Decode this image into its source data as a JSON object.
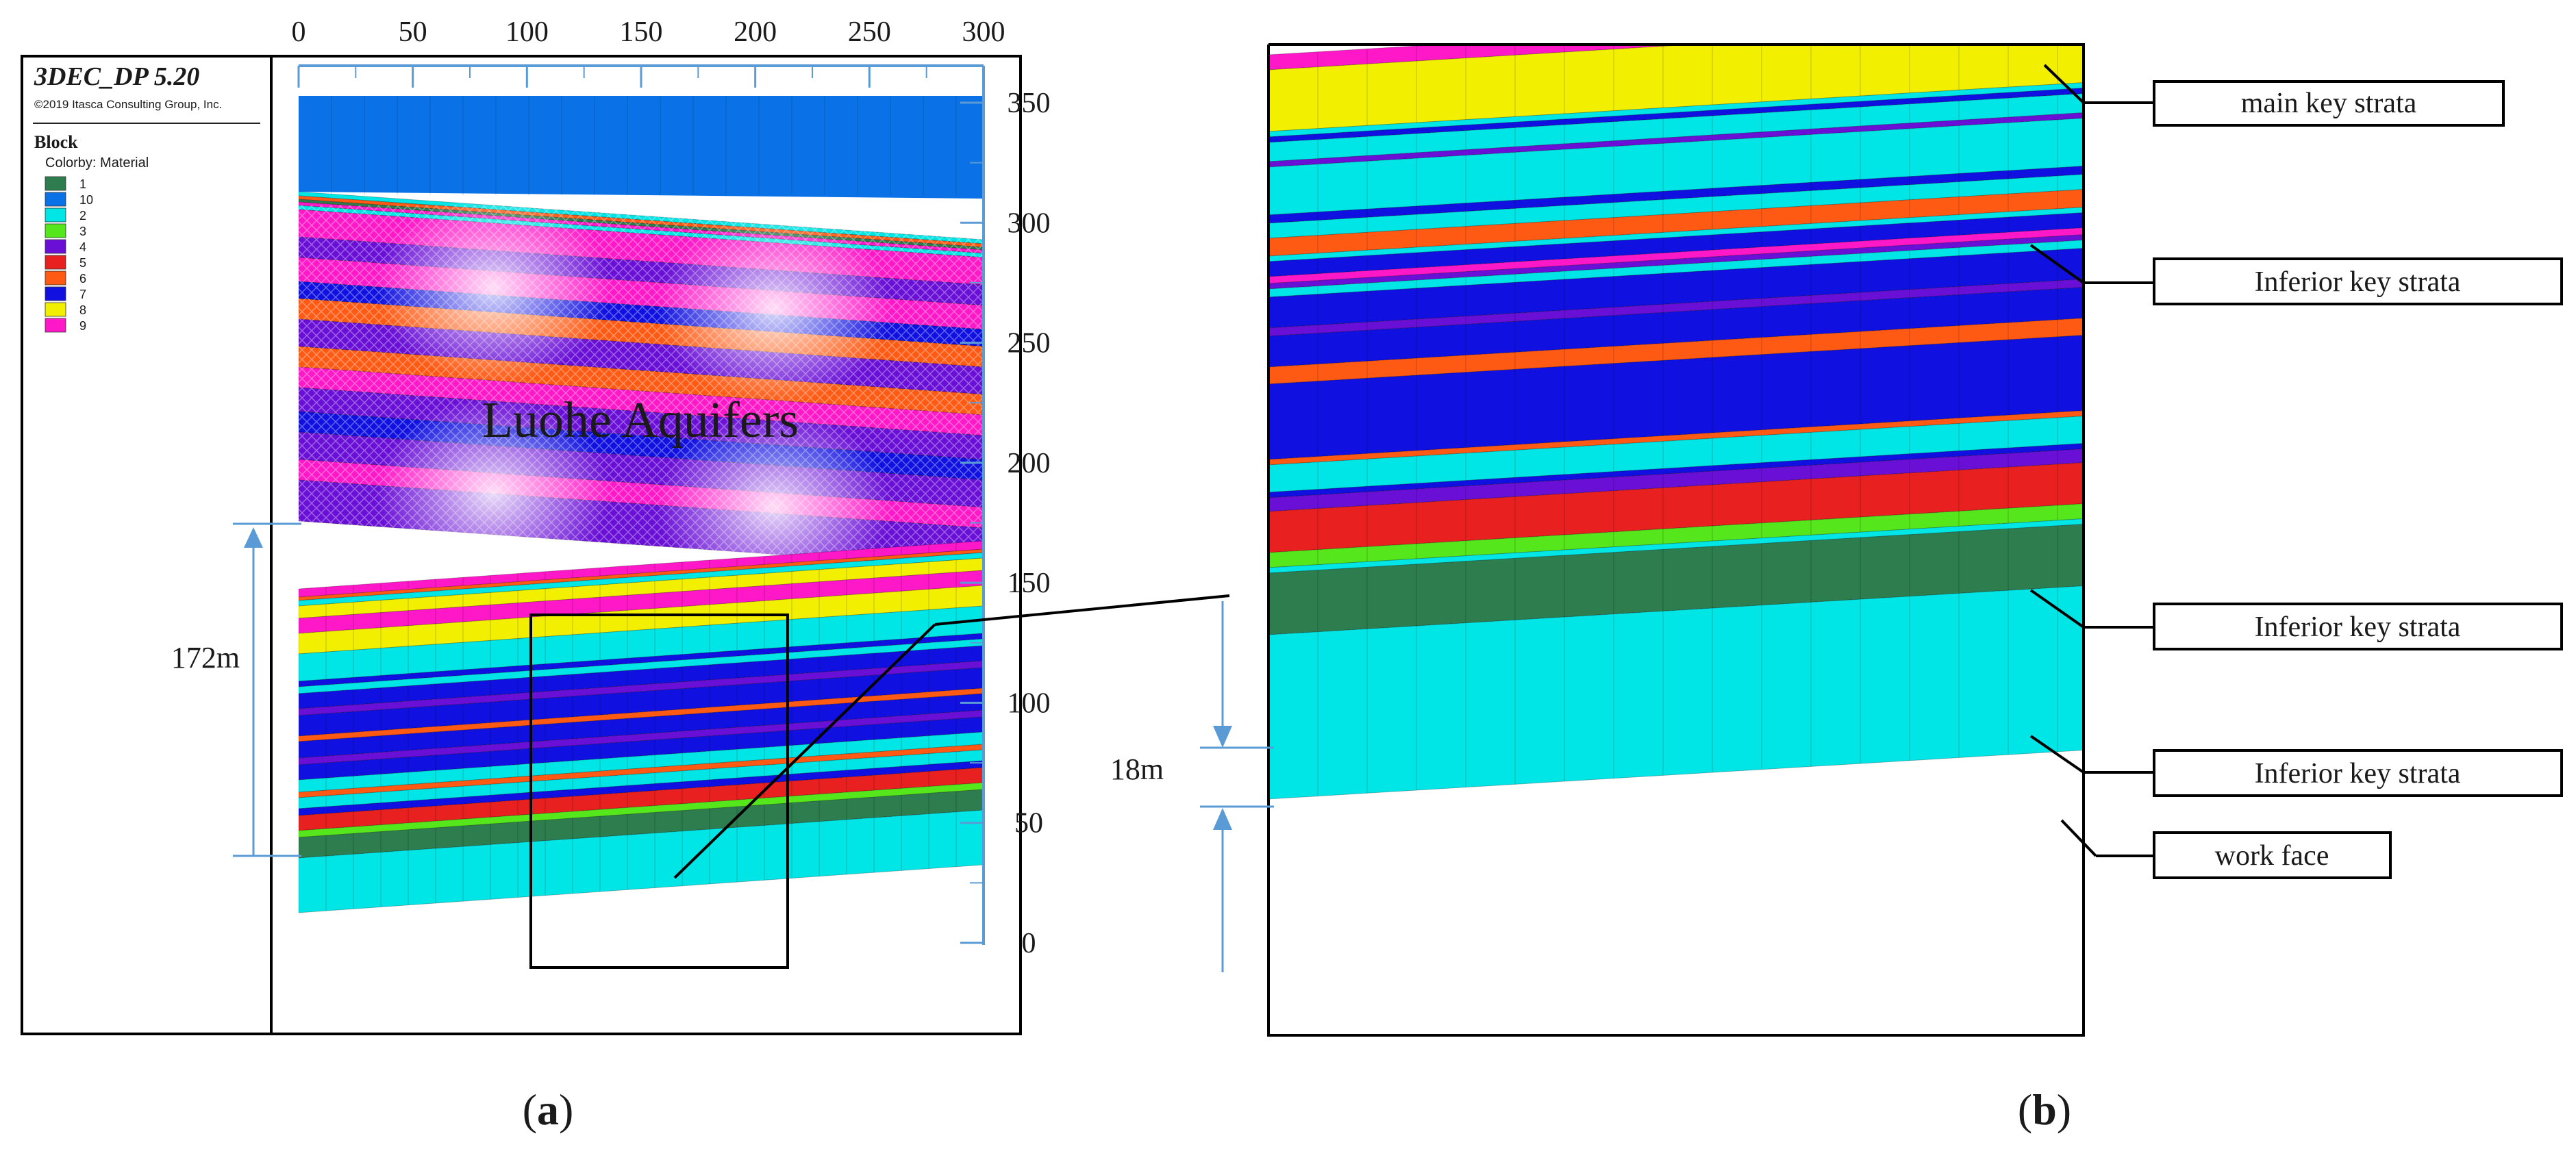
{
  "panel_a": {
    "software": {
      "title": "3DEC_DP 5.20",
      "copyright": "©2019 Itasca Consulting Group, Inc.",
      "section": "Block",
      "colorby": "Colorby: Material"
    },
    "legend": [
      {
        "label": "1",
        "color": "#2e7d4f"
      },
      {
        "label": "10",
        "color": "#0a72e6"
      },
      {
        "label": "2",
        "color": "#00e5e5"
      },
      {
        "label": "3",
        "color": "#55e61c"
      },
      {
        "label": "4",
        "color": "#6a0fd6"
      },
      {
        "label": "5",
        "color": "#e82020"
      },
      {
        "label": "6",
        "color": "#ff5a14"
      },
      {
        "label": "7",
        "color": "#1010e0"
      },
      {
        "label": "8",
        "color": "#f2f000"
      },
      {
        "label": "9",
        "color": "#ff18c8"
      }
    ],
    "x_ticks": [
      "0",
      "50",
      "100",
      "150",
      "200",
      "250",
      "300"
    ],
    "y_ticks": [
      "0",
      "50",
      "100",
      "150",
      "200",
      "250",
      "300",
      "350"
    ],
    "aquifer_label": "Luohe Aquifers",
    "height_label": "172m",
    "caption": "a"
  },
  "panel_b": {
    "height_label": "18m",
    "callouts": [
      "main key strata",
      "Inferior key strata",
      "Inferior key strata",
      "Inferior key strata",
      "work face"
    ],
    "caption": "b"
  },
  "colors": {
    "axis": "#5b9bd5",
    "frame": "#000000",
    "overburden": "#0a72e6",
    "aquifer": "#7f3cff",
    "bottom": "#00e5e5"
  }
}
